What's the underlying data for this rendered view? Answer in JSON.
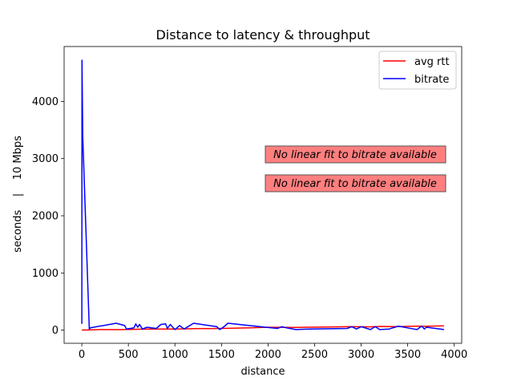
{
  "chart_data": {
    "type": "line",
    "title": "Distance to latency & throughput",
    "xlabel": "distance",
    "ylabel": "seconds    |    10 Mbps",
    "xlim": [
      -190,
      4080
    ],
    "ylim": [
      -230,
      4960
    ],
    "xticks": [
      0,
      500,
      1000,
      1500,
      2000,
      2500,
      3000,
      3500,
      4000
    ],
    "yticks": [
      0,
      1000,
      2000,
      3000,
      4000
    ],
    "grid": false,
    "legend_position": "top-right",
    "series": [
      {
        "name": "avg rtt",
        "color": "#ff0000",
        "points": [
          [
            0,
            2
          ],
          [
            60,
            3
          ],
          [
            200,
            10
          ],
          [
            400,
            8
          ],
          [
            600,
            15
          ],
          [
            800,
            20
          ],
          [
            1000,
            18
          ],
          [
            1200,
            25
          ],
          [
            1500,
            30
          ],
          [
            1800,
            40
          ],
          [
            2000,
            50
          ],
          [
            2300,
            48
          ],
          [
            2600,
            55
          ],
          [
            2900,
            60
          ],
          [
            3100,
            58
          ],
          [
            3200,
            65
          ],
          [
            3400,
            62
          ],
          [
            3600,
            70
          ],
          [
            3700,
            68
          ],
          [
            3890,
            75
          ]
        ]
      },
      {
        "name": "bitrate",
        "color": "#0000ff",
        "points": [
          [
            0,
            110
          ],
          [
            2,
            4720
          ],
          [
            10,
            3400
          ],
          [
            80,
            20
          ],
          [
            90,
            40
          ],
          [
            370,
            120
          ],
          [
            460,
            80
          ],
          [
            480,
            20
          ],
          [
            560,
            40
          ],
          [
            580,
            110
          ],
          [
            600,
            50
          ],
          [
            620,
            100
          ],
          [
            650,
            20
          ],
          [
            700,
            50
          ],
          [
            800,
            30
          ],
          [
            850,
            100
          ],
          [
            900,
            110
          ],
          [
            920,
            30
          ],
          [
            950,
            100
          ],
          [
            1000,
            10
          ],
          [
            1050,
            80
          ],
          [
            1100,
            20
          ],
          [
            1200,
            120
          ],
          [
            1450,
            60
          ],
          [
            1480,
            10
          ],
          [
            1520,
            50
          ],
          [
            1570,
            120
          ],
          [
            1800,
            80
          ],
          [
            2100,
            30
          ],
          [
            2150,
            60
          ],
          [
            2200,
            40
          ],
          [
            2300,
            10
          ],
          [
            2450,
            20
          ],
          [
            2850,
            30
          ],
          [
            2900,
            60
          ],
          [
            2950,
            20
          ],
          [
            3000,
            60
          ],
          [
            3100,
            10
          ],
          [
            3150,
            60
          ],
          [
            3200,
            10
          ],
          [
            3300,
            20
          ],
          [
            3400,
            70
          ],
          [
            3500,
            40
          ],
          [
            3600,
            10
          ],
          [
            3650,
            70
          ],
          [
            3680,
            20
          ],
          [
            3700,
            50
          ],
          [
            3890,
            10
          ]
        ]
      }
    ],
    "annotations": [
      {
        "text": "No linear fit to bitrate available",
        "facecolor": "#ff7f7f"
      },
      {
        "text": "No linear fit to bitrate available",
        "facecolor": "#ff7f7f"
      }
    ]
  }
}
